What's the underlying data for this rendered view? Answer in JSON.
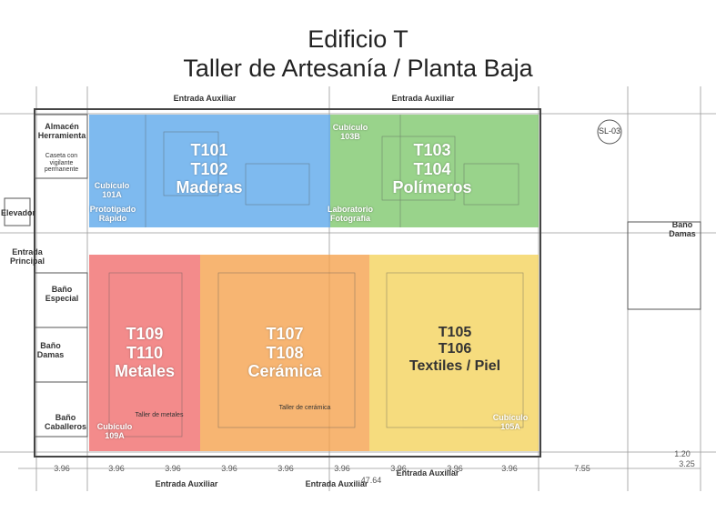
{
  "title": {
    "line1": "Edificio T",
    "line2": "Taller de Artesanía / Planta Baja"
  },
  "colors": {
    "blue": "#5aa6ea",
    "green": "#7cc76a",
    "red": "#ef6a6a",
    "orange": "#f5a04a",
    "yellow": "#f3d25a"
  },
  "zones": {
    "maderas": {
      "code1": "T101",
      "code2": "T102",
      "name": "Maderas"
    },
    "polimeros": {
      "code1": "T103",
      "code2": "T104",
      "name": "Polímeros"
    },
    "metales": {
      "code1": "T109",
      "code2": "T110",
      "name": "Metales"
    },
    "ceramica": {
      "code1": "T107",
      "code2": "T108",
      "name": "Cerámica"
    },
    "textiles": {
      "code1": "T105",
      "code2": "T106",
      "name": "Textiles / Piel"
    }
  },
  "rooms": {
    "almacen": "Almacén Herramienta",
    "caseta": "Caseta con vigilante permanente",
    "cubiculo_101a": "Cubículo 101A",
    "prototipado": "Prototipado Rápido",
    "cubiculo_103b": "Cubículo 103B",
    "lab_foto": "Laboratorio Fotografía",
    "elevador": "Elevador",
    "entrada_principal": "Entrada Principal",
    "bano_especial": "Baño Especial",
    "bano_damas_left": "Baño Damas",
    "bano_caballeros": "Baño Caballeros",
    "cubiculo_109a": "Cubículo 109A",
    "cubiculo_105a": "Cubículo 105A",
    "bano_damas_right": "Baño Damas",
    "sl": "SL-03",
    "taller_ceramica": "Taller de cerámica",
    "taller_metales": "Taller de metales"
  },
  "entrances": {
    "top_left": "Entrada Auxiliar",
    "top_right": "Entrada Auxiliar",
    "bottom_1": "Entrada Auxiliar",
    "bottom_2": "Entrada Auxiliar",
    "bottom_3": "Entrada Auxiliar"
  },
  "dimensions": [
    "3.96",
    "3.96",
    "3.96",
    "3.96",
    "3.96",
    "3.96",
    "3.96",
    "3.96",
    "3.96",
    "7.55",
    "3.25",
    "1.20",
    "47.64"
  ]
}
